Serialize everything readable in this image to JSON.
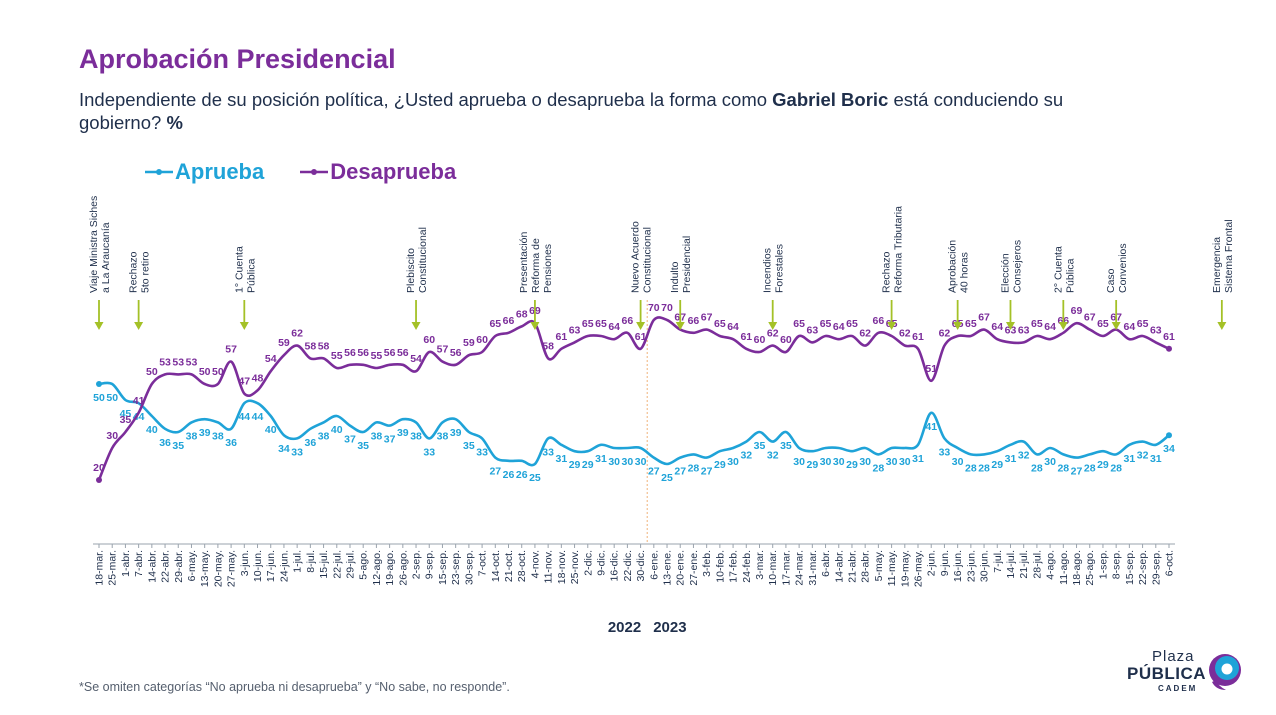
{
  "header": {
    "title": "Aprobación Presidencial",
    "subtitle_part1": "Independiente de su posición política, ¿Usted aprueba o desaprueba la forma como ",
    "subtitle_bold": "Gabriel Boric",
    "subtitle_part2": " está conduciendo su gobierno? ",
    "subtitle_pct": "%"
  },
  "footnote": "*Se omiten categorías “No aprueba ni desaprueba” y “No sabe, no responde”.",
  "logo": {
    "plaza": "Plaza",
    "publica": "PÚBLICA",
    "cadem": "CADEM"
  },
  "colors": {
    "aprueba": "#1fa3d8",
    "desaprueba": "#7b2d9a",
    "title": "#7b2d9a",
    "text": "#1f2f4b",
    "event_arrow": "#a4c127",
    "divider": "#f0b37a"
  },
  "chart_data": {
    "type": "line",
    "title": "Aprobación Presidencial",
    "legend": "top-left",
    "grid": false,
    "ylim": [
      0,
      100
    ],
    "years": [
      "2022",
      "2023"
    ],
    "categories": [
      "18-mar.",
      "25-mar.",
      "1-abr.",
      "7-abr.",
      "14-abr.",
      "22-abr.",
      "29-abr.",
      "6-may.",
      "13-may.",
      "20-may.",
      "27-may.",
      "3-jun.",
      "10-jun.",
      "17-jun.",
      "24-jun.",
      "1-jul.",
      "8-jul.",
      "15-jul.",
      "22-jul.",
      "29-jul.",
      "5-ago.",
      "12-ago.",
      "19-ago.",
      "26-ago.",
      "2-sep.",
      "9-sep.",
      "15-sep.",
      "23-sep.",
      "30-sep.",
      "7-oct.",
      "14-oct.",
      "21-oct.",
      "28-oct.",
      "4-nov.",
      "11-nov.",
      "18-nov.",
      "25-nov.",
      "2-dic.",
      "9-dic.",
      "16-dic.",
      "22-dic.",
      "30-dic.",
      "6-ene.",
      "13-ene.",
      "20-ene.",
      "27-ene.",
      "3-feb.",
      "10-feb.",
      "17-feb.",
      "24-feb.",
      "3-mar.",
      "10-mar.",
      "17-mar.",
      "24-mar.",
      "31-mar.",
      "6-abr.",
      "14-abr.",
      "21-abr.",
      "28-abr.",
      "5-may.",
      "11-may.",
      "19-may.",
      "26-may.",
      "2-jun.",
      "9-jun.",
      "16-jun.",
      "23-jun.",
      "30-jun.",
      "7-jul.",
      "14-jul.",
      "21-jul.",
      "28-jul.",
      "4-ago.",
      "11-ago.",
      "18-ago.",
      "25-ago.",
      "1-sep.",
      "8-sep.",
      "15-sep.",
      "22-sep.",
      "29-sep.",
      "6-oct."
    ],
    "series": [
      {
        "name": "Aprueba",
        "values": [
          50,
          50,
          45,
          44,
          40,
          36,
          35,
          38,
          39,
          38,
          36,
          44,
          44,
          40,
          34,
          33,
          36,
          38,
          40,
          37,
          35,
          38,
          37,
          39,
          38,
          33,
          38,
          39,
          35,
          33,
          27,
          26,
          26,
          25,
          33,
          31,
          29,
          29,
          31,
          30,
          30,
          30,
          27,
          25,
          27,
          28,
          27,
          29,
          30,
          32,
          35,
          32,
          35,
          30,
          29,
          30,
          30,
          29,
          30,
          28,
          30,
          30,
          31,
          41,
          33,
          30,
          28,
          28,
          29,
          31,
          32,
          28,
          30,
          28,
          27,
          28,
          29,
          28,
          31,
          32,
          31,
          34
        ]
      },
      {
        "name": "Desaprueba",
        "values": [
          20,
          30,
          35,
          41,
          50,
          53,
          53,
          53,
          50,
          50,
          57,
          47,
          48,
          54,
          59,
          62,
          58,
          58,
          55,
          56,
          56,
          55,
          56,
          56,
          54,
          60,
          57,
          56,
          59,
          60,
          65,
          66,
          68,
          69,
          58,
          61,
          63,
          65,
          65,
          64,
          66,
          61,
          70,
          70,
          67,
          66,
          67,
          65,
          64,
          61,
          60,
          62,
          60,
          65,
          63,
          65,
          64,
          65,
          62,
          66,
          65,
          62,
          61,
          51,
          62,
          65,
          65,
          67,
          64,
          63,
          63,
          65,
          64,
          66,
          69,
          67,
          65,
          67,
          64,
          65,
          63,
          61
        ]
      }
    ],
    "events": [
      {
        "index": 0,
        "label": [
          "Viaje Ministra Siches",
          "a La Araucanía"
        ]
      },
      {
        "index": 3,
        "label": [
          "Rechazo",
          "5to retiro"
        ]
      },
      {
        "index": 11,
        "label": [
          "1° Cuenta",
          "Pública"
        ]
      },
      {
        "index": 24,
        "label": [
          "Plebiscito",
          "Constitucional"
        ]
      },
      {
        "index": 33,
        "label": [
          "Presentación",
          "Reforma de",
          "Pensiones"
        ]
      },
      {
        "index": 41,
        "label": [
          "Nuevo Acuerdo",
          "Constitucional"
        ]
      },
      {
        "index": 44,
        "label": [
          "Indulto",
          "Presidencial"
        ]
      },
      {
        "index": 51,
        "label": [
          "Incendios",
          "Forestales"
        ]
      },
      {
        "index": 60,
        "label": [
          "Rechazo",
          "Reforma Tributaria"
        ]
      },
      {
        "index": 65,
        "label": [
          "Aprobación",
          "40 horas"
        ]
      },
      {
        "index": 69,
        "label": [
          "Elección",
          "Consejeros"
        ]
      },
      {
        "index": 73,
        "label": [
          "2° Cuenta",
          "Pública"
        ]
      },
      {
        "index": 77,
        "label": [
          "Caso",
          "Convenios"
        ]
      },
      {
        "index": 85,
        "label": [
          "Emergencia",
          "Sistema Frontal"
        ]
      }
    ]
  }
}
